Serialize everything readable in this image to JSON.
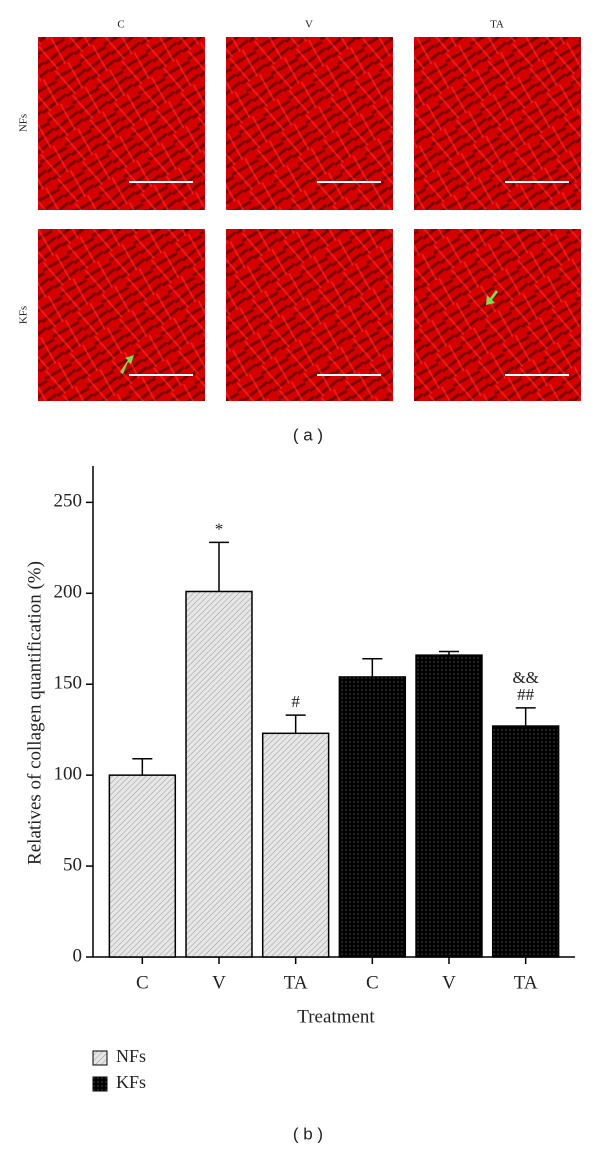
{
  "panel_a": {
    "columns": [
      "C",
      "V",
      "TA"
    ],
    "rows": [
      "NFs",
      "KFs"
    ],
    "label": "( a )"
  },
  "chart_data": {
    "type": "bar",
    "ylabel": "Relatives of collagen quantification (%)",
    "xlabel": "Treatment",
    "categories": [
      "C",
      "V",
      "TA",
      "C",
      "V",
      "TA"
    ],
    "series": [
      {
        "name": "NFs",
        "color": "#d9d9d9",
        "values": [
          100,
          201,
          123,
          null,
          null,
          null
        ],
        "errors": [
          9,
          27,
          10,
          null,
          null,
          null
        ]
      },
      {
        "name": "KFs",
        "color": "#000000",
        "values": [
          null,
          null,
          null,
          154,
          166,
          127
        ],
        "errors": [
          null,
          null,
          null,
          10,
          2,
          10
        ]
      }
    ],
    "annotations": [
      null,
      [
        "*"
      ],
      [
        "#"
      ],
      null,
      null,
      [
        "&&",
        "##"
      ]
    ],
    "ylim": [
      0,
      270
    ],
    "yticks": [
      0,
      50,
      100,
      150,
      200,
      250
    ],
    "legend": "bottom-left",
    "panel_label": "( b )"
  }
}
